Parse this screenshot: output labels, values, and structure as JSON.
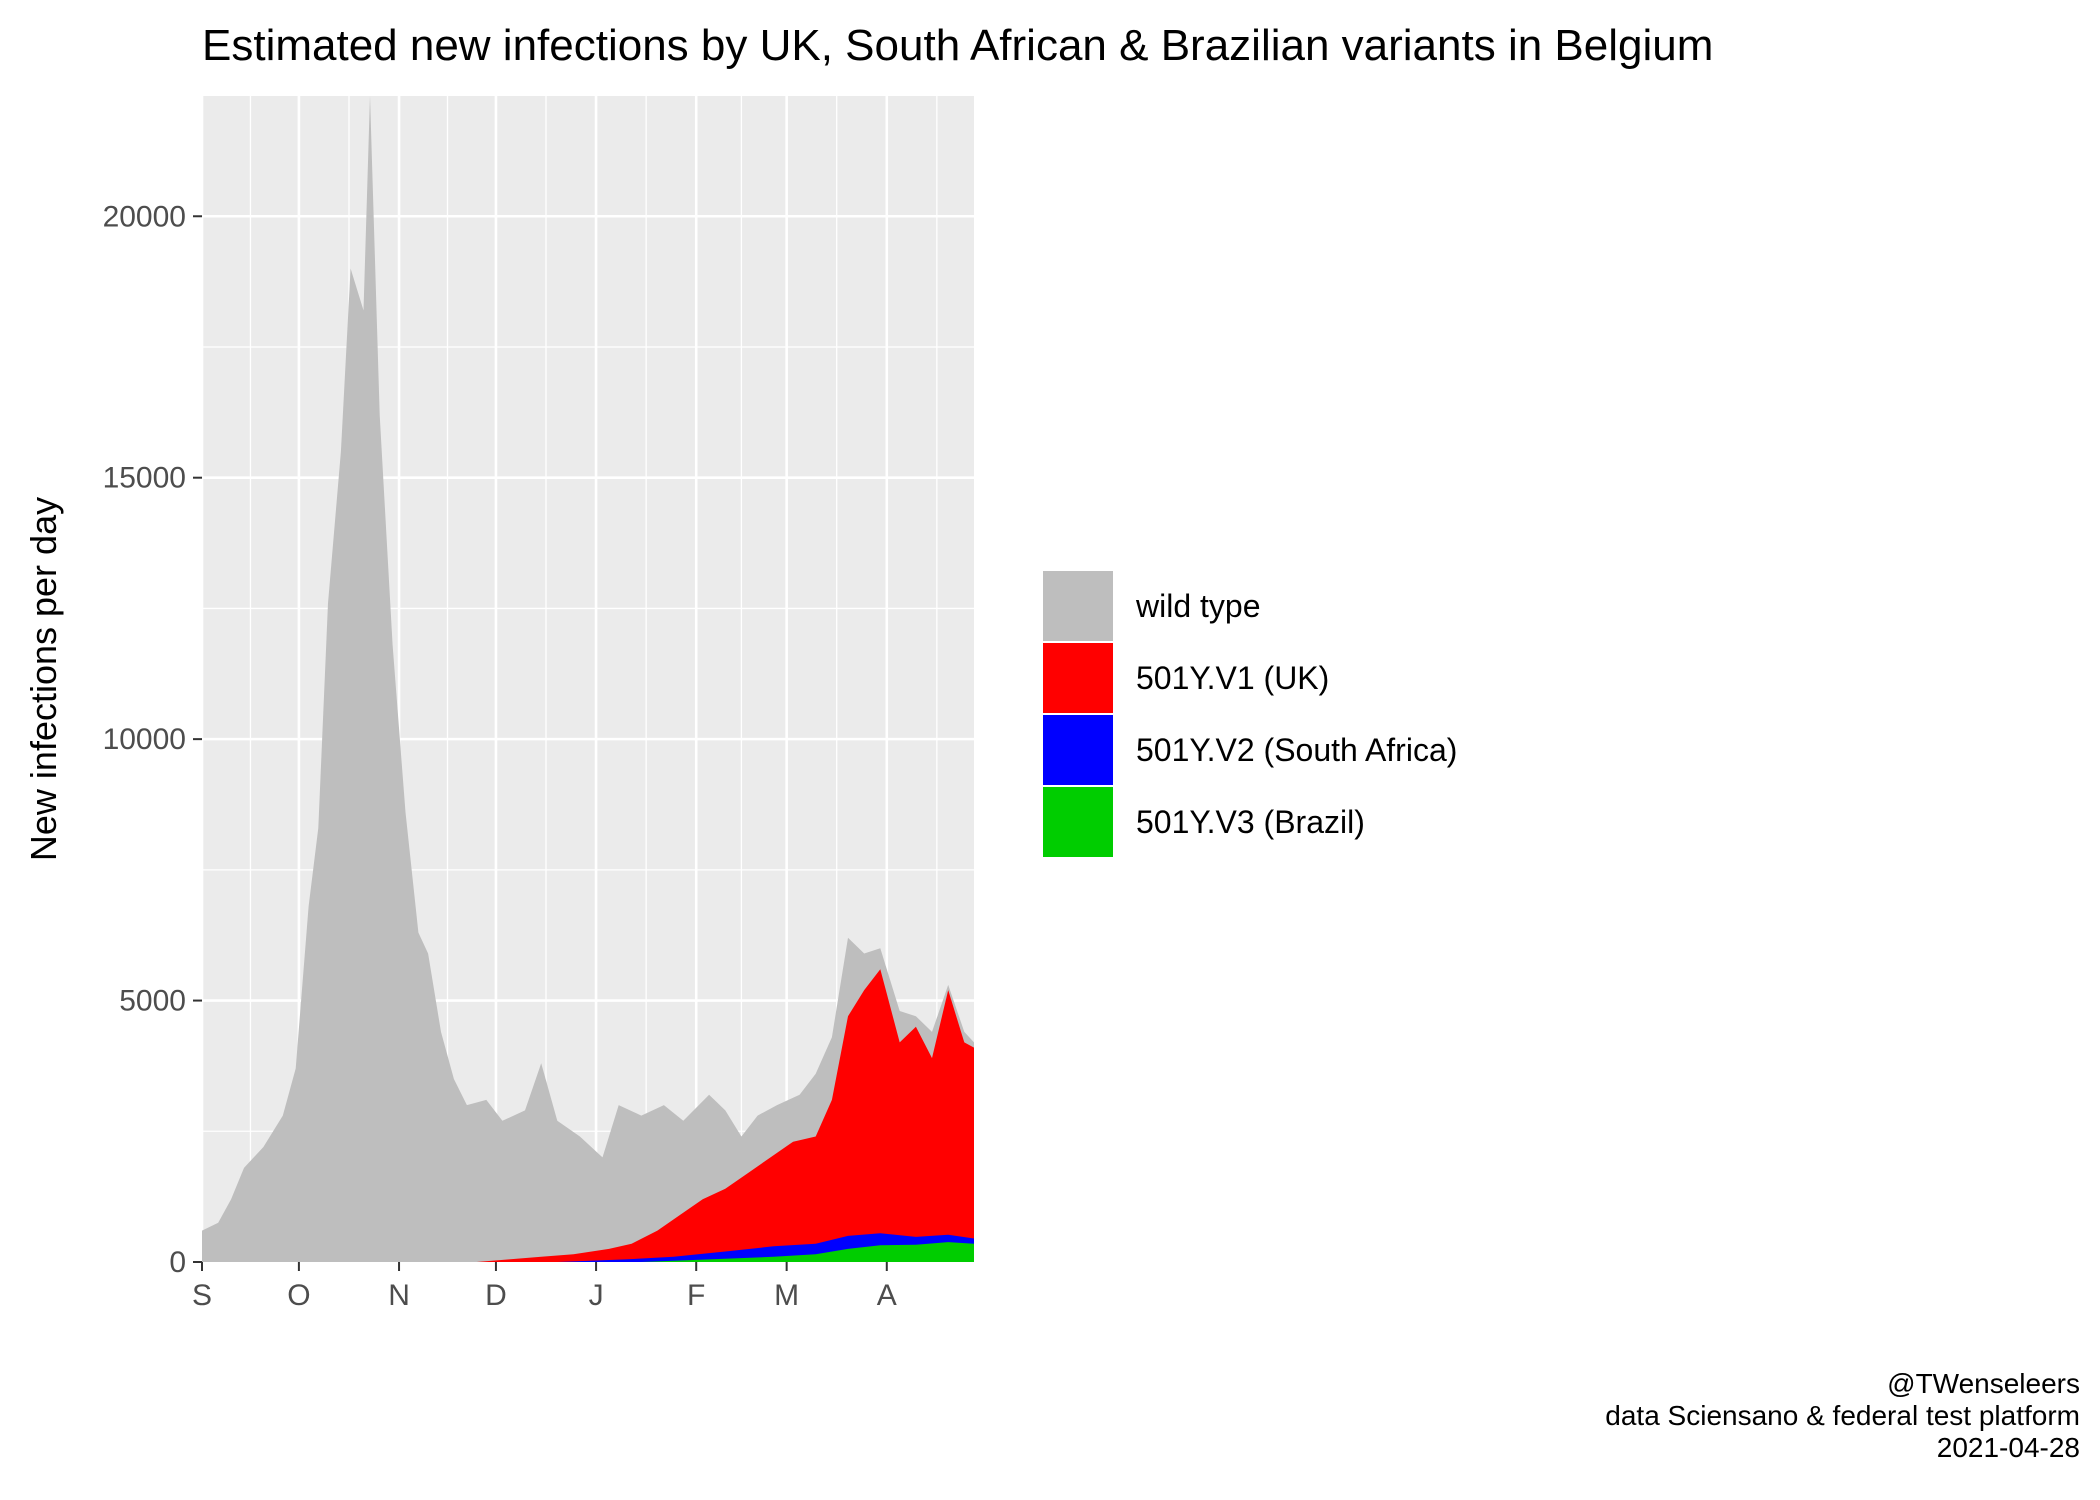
{
  "chart_data": {
    "type": "area",
    "stacked": true,
    "title": "Estimated new infections by UK, South African & Brazilian variants in Belgium",
    "xlabel": "",
    "ylabel": "New infections per day",
    "x_start": "2020-09-01",
    "x_end": "2021-04-28",
    "xlim": [
      "2020-09-01",
      "2021-04-28"
    ],
    "ylim": [
      0,
      22300
    ],
    "y_ticks": [
      0,
      5000,
      10000,
      15000,
      20000
    ],
    "x_ticks": [
      {
        "label": "S",
        "date": "2020-09-01"
      },
      {
        "label": "O",
        "date": "2020-10-01"
      },
      {
        "label": "N",
        "date": "2020-11-01"
      },
      {
        "label": "D",
        "date": "2020-12-01"
      },
      {
        "label": "J",
        "date": "2021-01-01"
      },
      {
        "label": "F",
        "date": "2021-02-01"
      },
      {
        "label": "M",
        "date": "2021-03-01"
      },
      {
        "label": "A",
        "date": "2021-04-01"
      }
    ],
    "grid": true,
    "legend_position": "right",
    "series": [
      {
        "name": "wild type",
        "color": "#bebebe",
        "role": "total",
        "points": [
          [
            "2020-09-01",
            600
          ],
          [
            "2020-09-06",
            750
          ],
          [
            "2020-09-10",
            1200
          ],
          [
            "2020-09-14",
            1800
          ],
          [
            "2020-09-20",
            2200
          ],
          [
            "2020-09-26",
            2800
          ],
          [
            "2020-09-30",
            3700
          ],
          [
            "2020-10-04",
            6800
          ],
          [
            "2020-10-07",
            8300
          ],
          [
            "2020-10-10",
            12600
          ],
          [
            "2020-10-14",
            15500
          ],
          [
            "2020-10-17",
            19000
          ],
          [
            "2020-10-21",
            18200
          ],
          [
            "2020-10-23",
            22300
          ],
          [
            "2020-10-26",
            16200
          ],
          [
            "2020-10-30",
            11800
          ],
          [
            "2020-11-03",
            8600
          ],
          [
            "2020-11-07",
            6300
          ],
          [
            "2020-11-10",
            5900
          ],
          [
            "2020-11-14",
            4400
          ],
          [
            "2020-11-18",
            3500
          ],
          [
            "2020-11-22",
            3000
          ],
          [
            "2020-11-28",
            3100
          ],
          [
            "2020-12-03",
            2700
          ],
          [
            "2020-12-10",
            2900
          ],
          [
            "2020-12-15",
            3800
          ],
          [
            "2020-12-20",
            2700
          ],
          [
            "2020-12-27",
            2400
          ],
          [
            "2021-01-03",
            2000
          ],
          [
            "2021-01-08",
            3000
          ],
          [
            "2021-01-15",
            2800
          ],
          [
            "2021-01-22",
            3000
          ],
          [
            "2021-01-28",
            2700
          ],
          [
            "2021-02-05",
            3200
          ],
          [
            "2021-02-10",
            2900
          ],
          [
            "2021-02-15",
            2400
          ],
          [
            "2021-02-20",
            2800
          ],
          [
            "2021-02-26",
            3000
          ],
          [
            "2021-03-05",
            3200
          ],
          [
            "2021-03-10",
            3600
          ],
          [
            "2021-03-15",
            4300
          ],
          [
            "2021-03-20",
            6200
          ],
          [
            "2021-03-25",
            5900
          ],
          [
            "2021-03-30",
            6000
          ],
          [
            "2021-04-05",
            4800
          ],
          [
            "2021-04-10",
            4700
          ],
          [
            "2021-04-15",
            4400
          ],
          [
            "2021-04-20",
            5300
          ],
          [
            "2021-04-25",
            4400
          ],
          [
            "2021-04-28",
            4200
          ]
        ]
      },
      {
        "name": "501Y.V1 (UK)",
        "color": "#ff0000",
        "role": "cumulative",
        "points": [
          [
            "2020-09-01",
            0
          ],
          [
            "2020-11-25",
            0
          ],
          [
            "2020-12-05",
            50
          ],
          [
            "2020-12-15",
            100
          ],
          [
            "2020-12-25",
            150
          ],
          [
            "2021-01-05",
            250
          ],
          [
            "2021-01-12",
            350
          ],
          [
            "2021-01-20",
            600
          ],
          [
            "2021-01-27",
            900
          ],
          [
            "2021-02-03",
            1200
          ],
          [
            "2021-02-10",
            1400
          ],
          [
            "2021-02-17",
            1700
          ],
          [
            "2021-02-24",
            2000
          ],
          [
            "2021-03-03",
            2300
          ],
          [
            "2021-03-10",
            2400
          ],
          [
            "2021-03-15",
            3100
          ],
          [
            "2021-03-20",
            4700
          ],
          [
            "2021-03-25",
            5200
          ],
          [
            "2021-03-30",
            5600
          ],
          [
            "2021-04-05",
            4200
          ],
          [
            "2021-04-10",
            4500
          ],
          [
            "2021-04-15",
            3900
          ],
          [
            "2021-04-20",
            5200
          ],
          [
            "2021-04-25",
            4200
          ],
          [
            "2021-04-28",
            4100
          ]
        ]
      },
      {
        "name": "501Y.V2 (South Africa)",
        "color": "#0000ff",
        "role": "cumulative",
        "points": [
          [
            "2020-09-01",
            0
          ],
          [
            "2020-12-20",
            0
          ],
          [
            "2021-01-10",
            50
          ],
          [
            "2021-01-25",
            100
          ],
          [
            "2021-02-10",
            200
          ],
          [
            "2021-02-25",
            300
          ],
          [
            "2021-03-10",
            350
          ],
          [
            "2021-03-20",
            500
          ],
          [
            "2021-03-30",
            550
          ],
          [
            "2021-04-10",
            480
          ],
          [
            "2021-04-20",
            520
          ],
          [
            "2021-04-28",
            450
          ]
        ]
      },
      {
        "name": "501Y.V3 (Brazil)",
        "color": "#00cd00",
        "role": "cumulative",
        "points": [
          [
            "2020-09-01",
            0
          ],
          [
            "2021-01-15",
            0
          ],
          [
            "2021-02-05",
            50
          ],
          [
            "2021-02-25",
            100
          ],
          [
            "2021-03-10",
            150
          ],
          [
            "2021-03-20",
            250
          ],
          [
            "2021-03-30",
            320
          ],
          [
            "2021-04-10",
            330
          ],
          [
            "2021-04-20",
            380
          ],
          [
            "2021-04-28",
            350
          ]
        ]
      }
    ]
  },
  "legend": {
    "items": [
      {
        "label": "wild type",
        "color": "#bebebe"
      },
      {
        "label": "501Y.V1 (UK)",
        "color": "#ff0000"
      },
      {
        "label": "501Y.V2 (South Africa)",
        "color": "#0000ff"
      },
      {
        "label": "501Y.V3 (Brazil)",
        "color": "#00cd00"
      }
    ]
  },
  "caption": {
    "author": "@TWenseleers",
    "source": "data Sciensano & federal test platform",
    "date": "2021-04-28"
  }
}
